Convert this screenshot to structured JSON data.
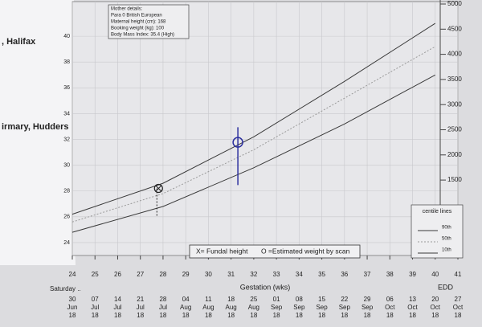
{
  "chart_data": {
    "type": "line",
    "page_text": [
      ", Halifax",
      "irmary, Hudders"
    ],
    "mother_details": [
      "Mother details:",
      "Para 0   British European",
      "Maternal height (cm): 168",
      "Booking weight (kg): 100",
      "Body Mass Index: 35.4 (High)"
    ],
    "legend_text": [
      "X= Fundal height",
      "O =Estimated weight by scan"
    ],
    "centile_title": "centile lines",
    "x_label": "Gestation (wks)",
    "day_label": "Saturday ..",
    "edd_label": "EDD",
    "x": [
      24,
      28,
      32,
      36,
      40
    ],
    "series": [
      {
        "name": "90th",
        "color": "#3a3a3a",
        "values": [
          26.2,
          28.6,
          32.2,
          36.5,
          41
        ]
      },
      {
        "name": "50th",
        "color": "#9a9a9a",
        "values": [
          25.6,
          27.8,
          31.2,
          35.2,
          39.2
        ]
      },
      {
        "name": "10th",
        "color": "#3a3a3a",
        "values": [
          24.8,
          26.8,
          29.8,
          33.2,
          37
        ]
      }
    ],
    "fundal_height": {
      "x": 27.8,
      "value": 28.2,
      "color": "#222"
    },
    "scan_weight": {
      "x": 31.3,
      "value": 2250,
      "low": 1400,
      "high": 2550,
      "color": "#2b2f9e",
      "axis": "y2"
    },
    "xlim": [
      24,
      41
    ],
    "xticks": [
      24,
      25,
      26,
      27,
      28,
      29,
      30,
      31,
      32,
      33,
      34,
      35,
      36,
      37,
      38,
      39,
      40,
      41
    ],
    "ylim": [
      23,
      42.5
    ],
    "yticks": [
      24,
      26,
      28,
      30,
      32,
      34,
      36,
      38,
      40
    ],
    "y2lim": [
      0,
      5000
    ],
    "y2ticks": [
      1500,
      2000,
      2500,
      3000,
      3500,
      4000,
      4500,
      5000
    ],
    "grid": true,
    "dates": [
      {
        "day": "30",
        "month": "Jun",
        "year": "18"
      },
      {
        "day": "07",
        "month": "Jul",
        "year": "18"
      },
      {
        "day": "14",
        "month": "Jul",
        "year": "18"
      },
      {
        "day": "21",
        "month": "Jul",
        "year": "18"
      },
      {
        "day": "28",
        "month": "Jul",
        "year": "18"
      },
      {
        "day": "04",
        "month": "Aug",
        "year": "18"
      },
      {
        "day": "11",
        "month": "Aug",
        "year": "18"
      },
      {
        "day": "18",
        "month": "Aug",
        "year": "18"
      },
      {
        "day": "25",
        "month": "Aug",
        "year": "18"
      },
      {
        "day": "01",
        "month": "Sep",
        "year": "18"
      },
      {
        "day": "08",
        "month": "Sep",
        "year": "18"
      },
      {
        "day": "15",
        "month": "Sep",
        "year": "18"
      },
      {
        "day": "22",
        "month": "Sep",
        "year": "18"
      },
      {
        "day": "29",
        "month": "Sep",
        "year": "18"
      },
      {
        "day": "06",
        "month": "Oct",
        "year": "18"
      },
      {
        "day": "13",
        "month": "Oct",
        "year": "18"
      },
      {
        "day": "20",
        "month": "Oct",
        "year": "18"
      },
      {
        "day": "27",
        "month": "Oct",
        "year": "18"
      }
    ]
  }
}
